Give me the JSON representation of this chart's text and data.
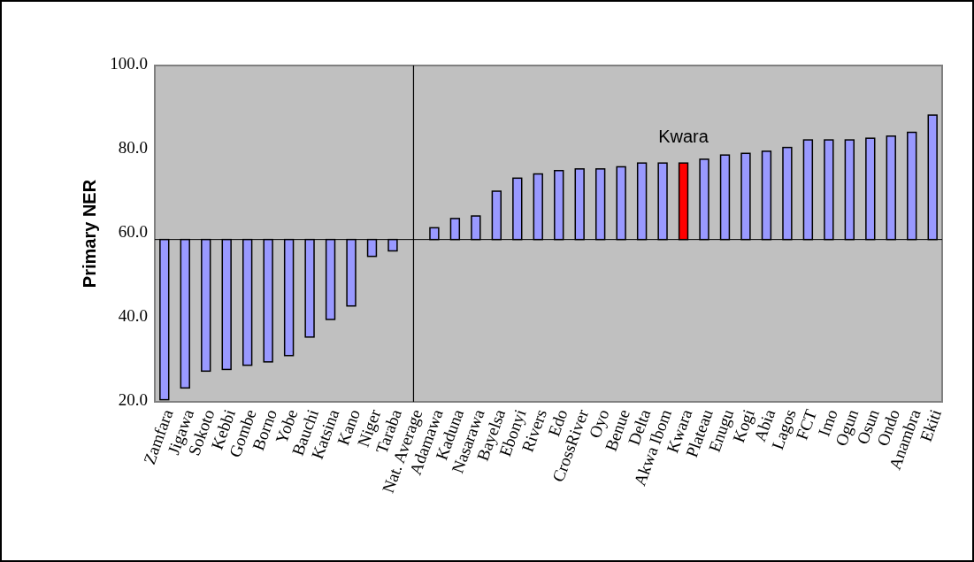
{
  "chart_data": {
    "type": "bar",
    "ylabel": "Primary NER",
    "categories": [
      "Zamfara",
      "Jigawa",
      "Sokoto",
      "Kebbi",
      "Gombe",
      "Borno",
      "Yobe",
      "Bauchi",
      "Katsina",
      "Kano",
      "Niger",
      "Taraba",
      "Nat. Average",
      "Adamawa",
      "Kaduna",
      "Nasarawa",
      "Bayelsa",
      "Ebonyi",
      "Rivers",
      "Edo",
      "CrossRiver",
      "Oyo",
      "Benue",
      "Delta",
      "Akwa Ibom",
      "Kwara",
      "Plateau",
      "Enugu",
      "Kogi",
      "Abia",
      "Lagos",
      "FCT",
      "Imo",
      "Ogun",
      "Osun",
      "Ondo",
      "Anambra",
      "Ekiti"
    ],
    "values": [
      -38.1,
      -35.3,
      -31.3,
      -30.9,
      -29.9,
      -29.1,
      -27.6,
      -23.2,
      -19.0,
      -15.8,
      -4.0,
      -2.7,
      null,
      2.8,
      5.0,
      5.6,
      11.5,
      14.6,
      15.6,
      16.4,
      16.8,
      16.8,
      17.3,
      18.2,
      18.2,
      18.2,
      19.1,
      20.1,
      20.5,
      21.0,
      21.9,
      23.7,
      23.7,
      23.7,
      24.1,
      24.6,
      25.5,
      29.6
    ],
    "base": [
      58.6,
      58.6,
      58.6,
      58.6,
      58.6,
      58.6,
      58.6,
      58.6,
      58.6,
      58.6,
      58.6,
      58.6,
      null,
      58.6,
      58.6,
      58.6,
      58.6,
      58.6,
      58.6,
      58.6,
      58.6,
      58.6,
      58.6,
      58.6,
      58.6,
      58.6,
      58.6,
      58.6,
      58.6,
      58.6,
      58.6,
      58.6,
      58.6,
      58.6,
      58.6,
      58.6,
      58.6,
      58.6
    ],
    "colors": [
      "#9999ff",
      "#9999ff",
      "#9999ff",
      "#9999ff",
      "#9999ff",
      "#9999ff",
      "#9999ff",
      "#9999ff",
      "#9999ff",
      "#9999ff",
      "#9999ff",
      "#9999ff",
      null,
      "#9999ff",
      "#9999ff",
      "#9999ff",
      "#9999ff",
      "#9999ff",
      "#9999ff",
      "#9999ff",
      "#9999ff",
      "#9999ff",
      "#9999ff",
      "#9999ff",
      "#9999ff",
      "#ff0000",
      "#9999ff",
      "#9999ff",
      "#9999ff",
      "#9999ff",
      "#9999ff",
      "#9999ff",
      "#9999ff",
      "#9999ff",
      "#9999ff",
      "#9999ff",
      "#9999ff",
      "#9999ff"
    ],
    "ylim": [
      20,
      100
    ],
    "yticks": [
      {
        "value": 20,
        "label": "20.0"
      },
      {
        "value": 40,
        "label": "40.0"
      },
      {
        "value": 60,
        "label": "60.0"
      },
      {
        "value": 80,
        "label": "80.0"
      },
      {
        "value": 100,
        "label": "100.0"
      }
    ],
    "ref_lines": [
      {
        "axis": "y",
        "value": 58.6,
        "color": "#000000"
      },
      {
        "axis": "x",
        "value": "Nat. Average",
        "color": "#000000"
      }
    ],
    "annotations": [
      {
        "text": "Kwara",
        "x": "Kwara",
        "y": 76.8
      }
    ],
    "grid": false
  }
}
